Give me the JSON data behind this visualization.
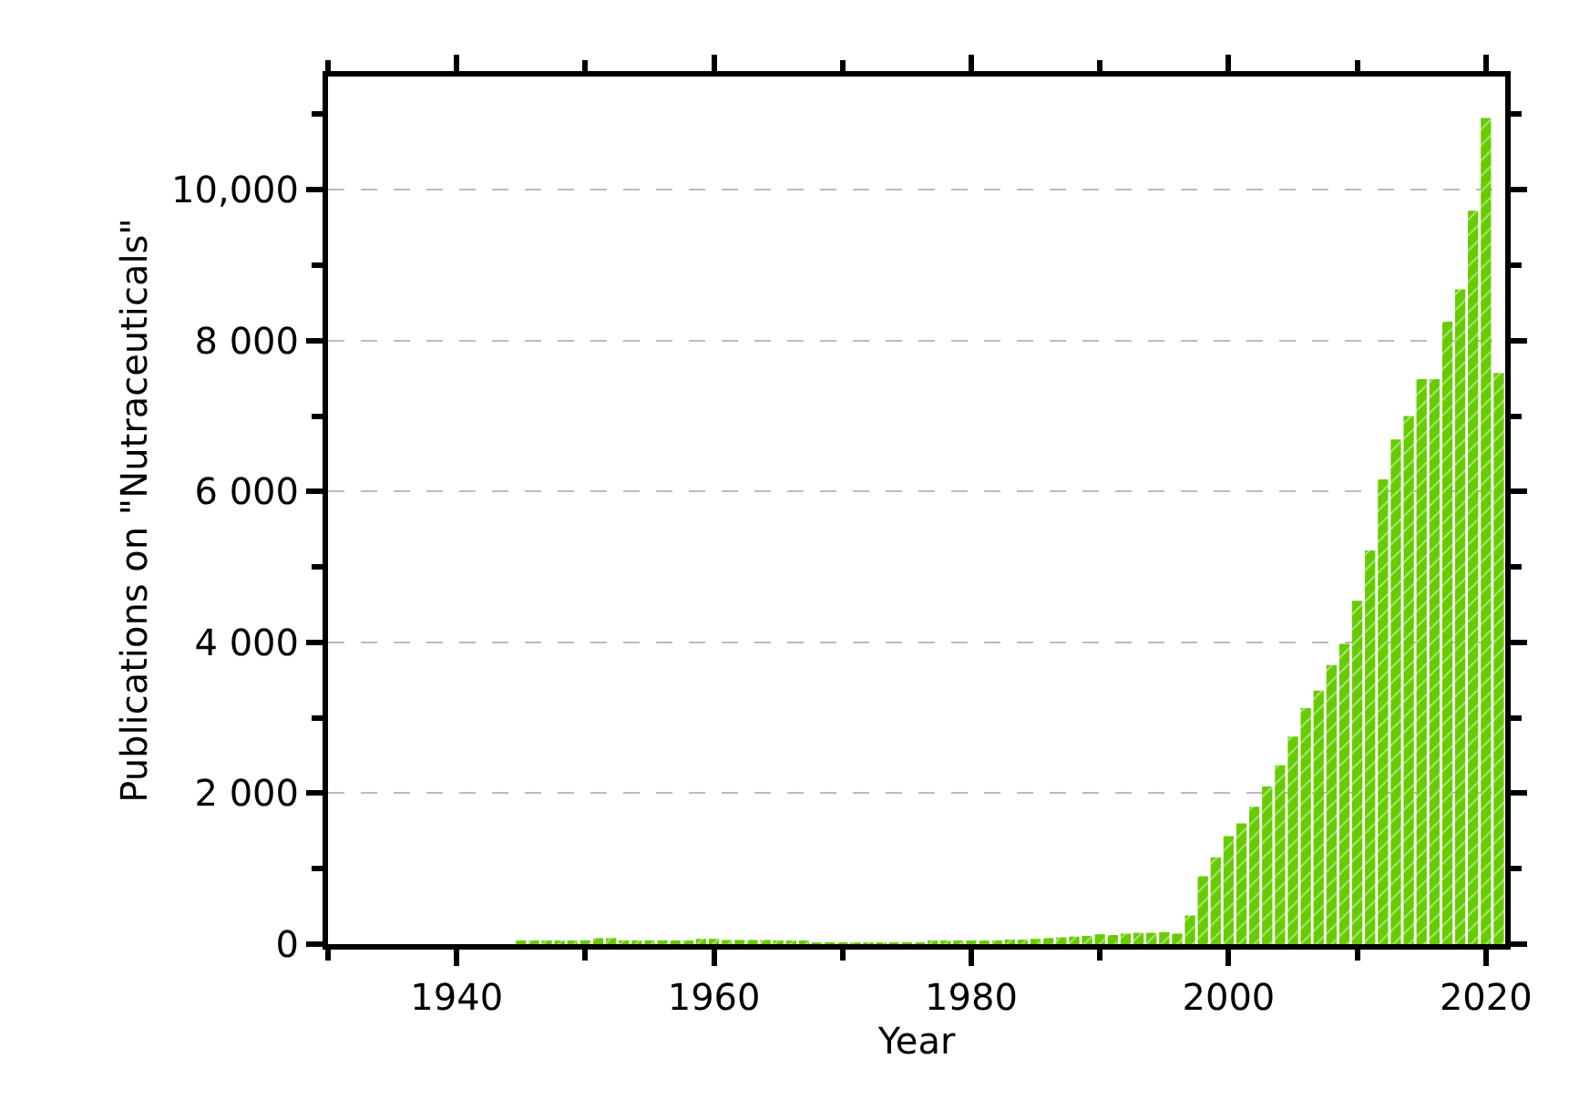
{
  "chart_data": {
    "type": "bar",
    "xlabel": "Year",
    "ylabel": "Publications on \"Nutraceuticals\"",
    "x": [
      1945,
      1946,
      1947,
      1948,
      1949,
      1950,
      1951,
      1952,
      1953,
      1954,
      1955,
      1956,
      1957,
      1958,
      1959,
      1960,
      1961,
      1962,
      1963,
      1964,
      1965,
      1966,
      1967,
      1968,
      1969,
      1970,
      1971,
      1972,
      1973,
      1974,
      1975,
      1976,
      1977,
      1978,
      1979,
      1980,
      1981,
      1982,
      1983,
      1984,
      1985,
      1986,
      1987,
      1988,
      1989,
      1990,
      1991,
      1992,
      1993,
      1994,
      1995,
      1996,
      1997,
      1998,
      1999,
      2000,
      2001,
      2002,
      2003,
      2004,
      2005,
      2006,
      2007,
      2008,
      2009,
      2010,
      2011,
      2012,
      2013,
      2014,
      2015,
      2016,
      2017,
      2018,
      2019,
      2020,
      2021
    ],
    "values": [
      25,
      25,
      25,
      25,
      30,
      50,
      80,
      80,
      50,
      50,
      50,
      50,
      50,
      50,
      70,
      70,
      55,
      55,
      55,
      55,
      30,
      30,
      30,
      10,
      10,
      10,
      10,
      10,
      10,
      10,
      15,
      20,
      30,
      30,
      40,
      40,
      40,
      50,
      60,
      60,
      70,
      80,
      90,
      100,
      110,
      130,
      120,
      140,
      150,
      150,
      160,
      140,
      380,
      900,
      1150,
      1430,
      1600,
      1820,
      2090,
      2370,
      2750,
      3130,
      3360,
      3700,
      3980,
      4550,
      5220,
      6160,
      6690,
      7000,
      7490,
      7490,
      8250,
      8680,
      9720,
      10950,
      7570
    ],
    "color": "#66cc00",
    "xlim": [
      1930,
      2021.5
    ],
    "xticks": [
      1940,
      1960,
      1980,
      2000,
      2020,
      {
        "value": 1930,
        "label": null
      },
      {
        "value": 1950,
        "label": null
      },
      {
        "value": 1970,
        "label": null
      },
      {
        "value": 1990,
        "label": null
      },
      {
        "value": 2010,
        "label": null
      }
    ],
    "ylim": [
      0,
      11500
    ],
    "yticks": [
      0,
      {
        "value": 2000,
        "label": "2 000"
      },
      {
        "value": 4000,
        "label": "4 000"
      },
      {
        "value": 6000,
        "label": "6 000"
      },
      {
        "value": 8000,
        "label": "8 000"
      },
      {
        "value": 10000,
        "label": "10,000"
      },
      {
        "value": 1000,
        "label": null
      },
      {
        "value": 3000,
        "label": null
      },
      {
        "value": 5000,
        "label": null
      },
      {
        "value": 7000,
        "label": null
      },
      {
        "value": 9000,
        "label": null
      },
      {
        "value": 11000,
        "label": null
      }
    ],
    "grid": "y"
  }
}
